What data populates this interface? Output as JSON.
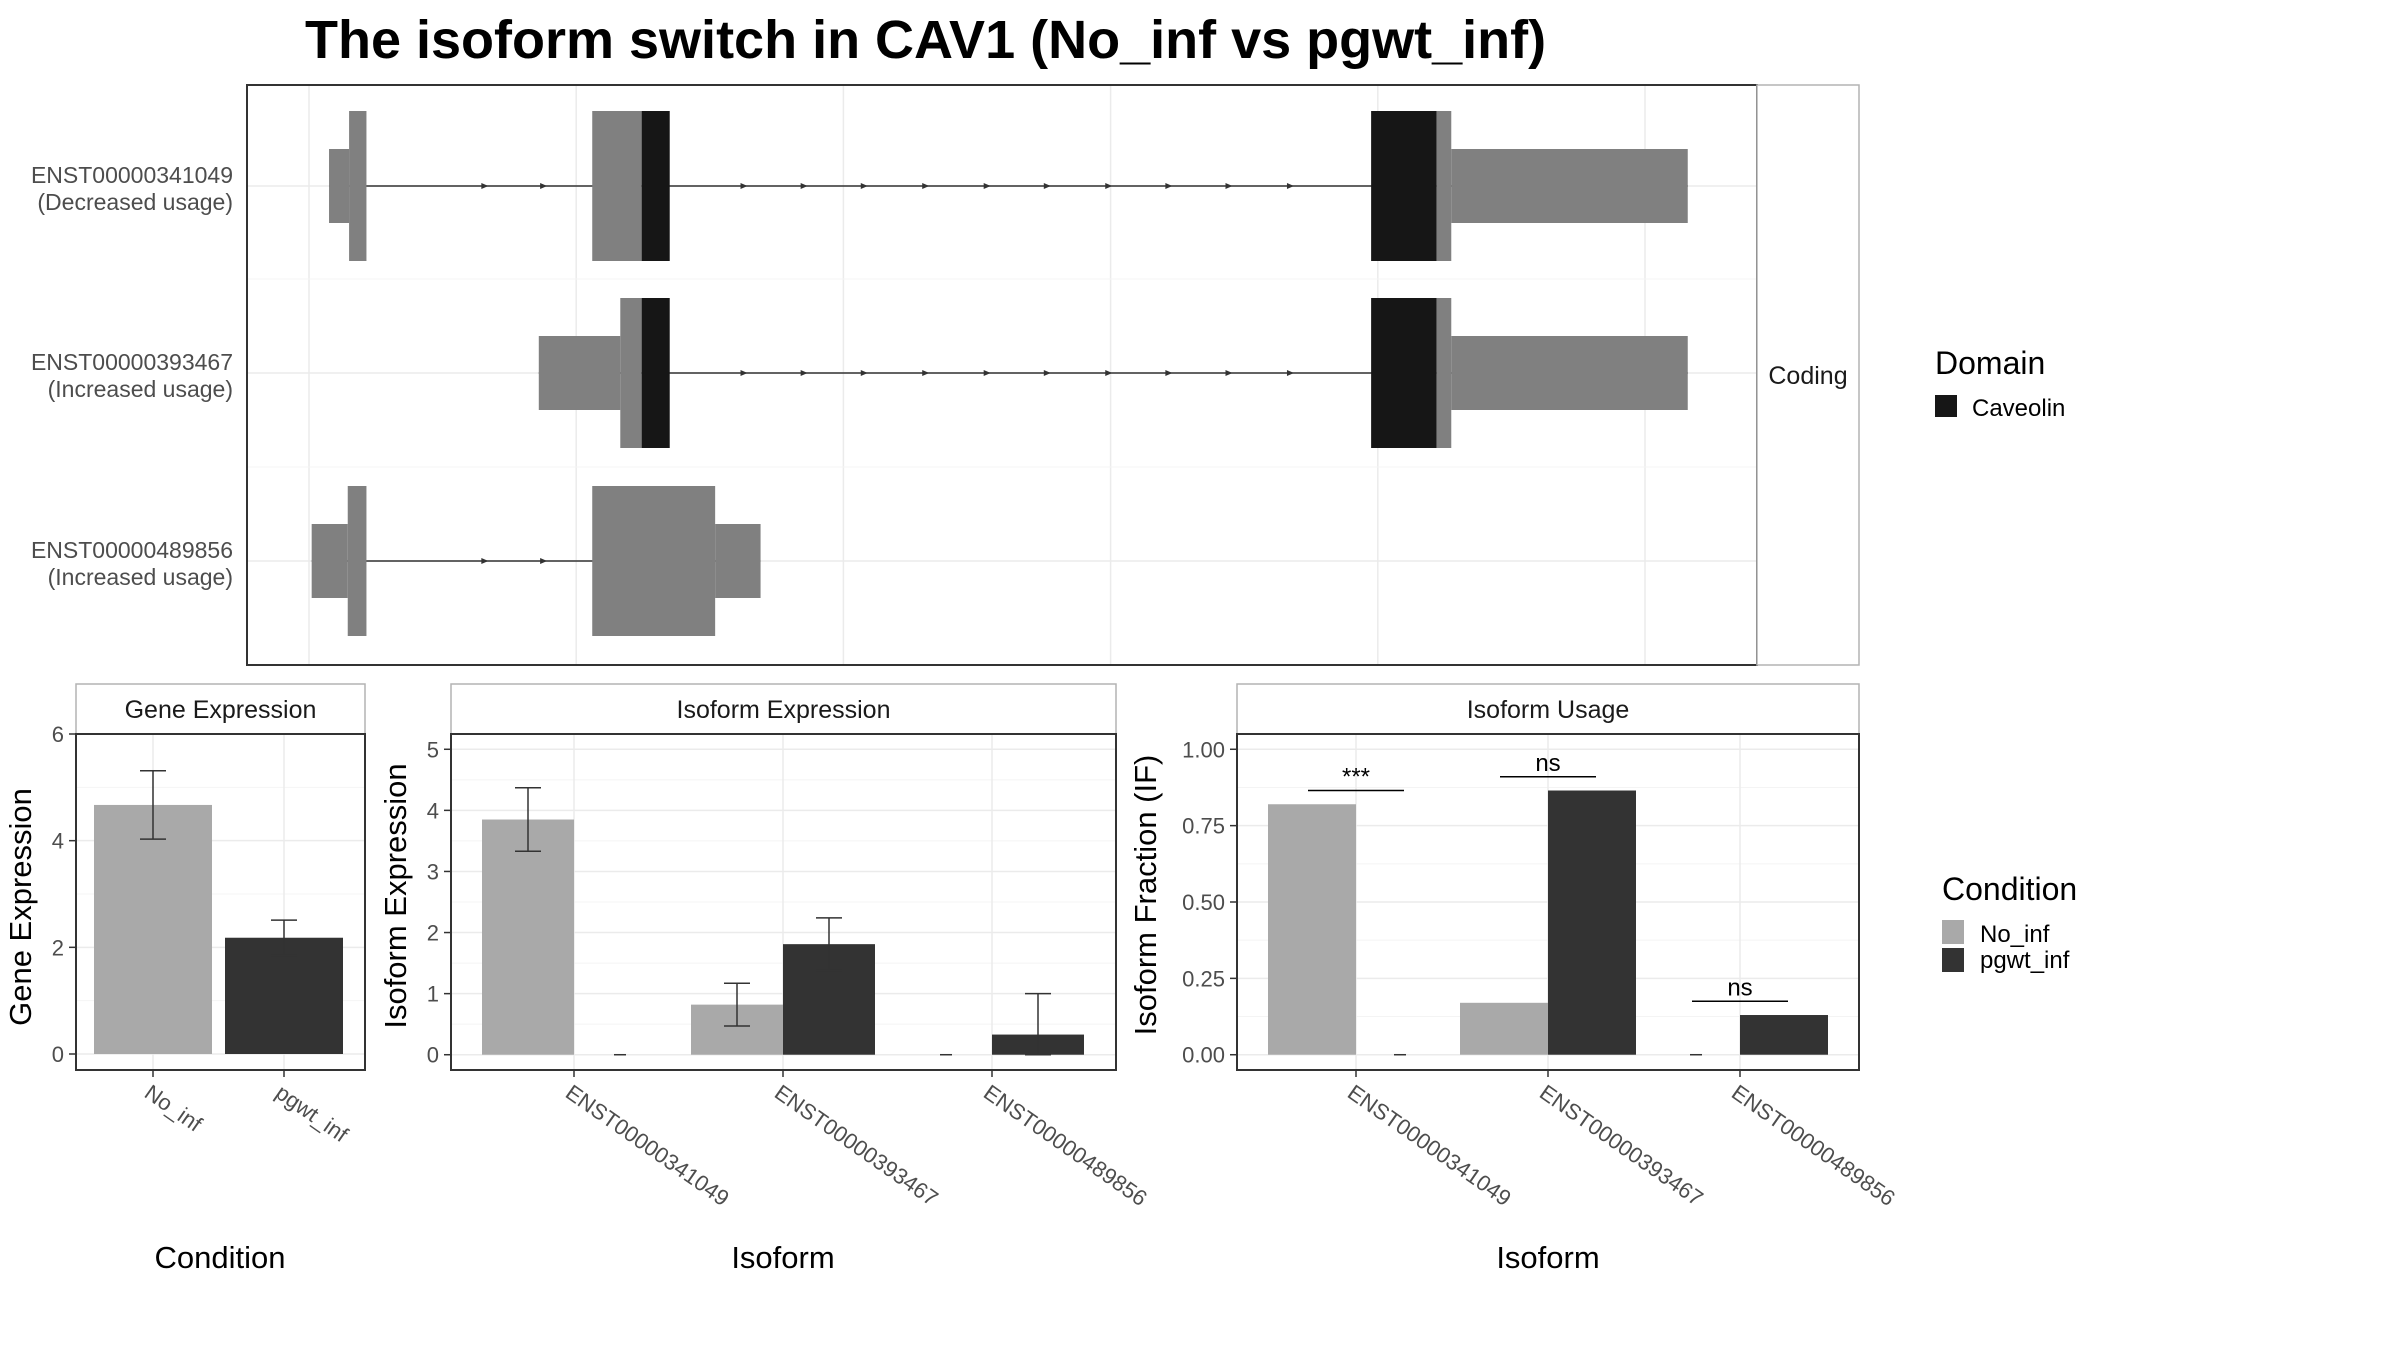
{
  "title": "The isoform switch in CAV1 (No_inf vs pgwt_inf)",
  "colors": {
    "exon": "#808080",
    "domain_caveolin": "#161616",
    "no_inf": "#a9a9a9",
    "pgwt_inf": "#333333",
    "grid": "#ebebeb",
    "strip_fill": "#ffffff",
    "intron": "#333333"
  },
  "chart_data": [
    {
      "type": "transcript",
      "facet_label": "Coding",
      "x_range": [
        0,
        100
      ],
      "transcripts": [
        {
          "id": "ENST00000341049",
          "usage": "(Decreased usage)",
          "exons": [
            {
              "start": 1.5,
              "end": 3.0,
              "kind": "utr"
            },
            {
              "start": 3.0,
              "end": 4.3,
              "kind": "cds"
            },
            {
              "start": 21.2,
              "end": 24.9,
              "kind": "cds"
            },
            {
              "start": 24.9,
              "end": 27.0,
              "kind": "cds",
              "domain": "Caveolin"
            },
            {
              "start": 79.5,
              "end": 84.4,
              "kind": "cds",
              "domain": "Caveolin"
            },
            {
              "start": 84.4,
              "end": 85.5,
              "kind": "cds"
            },
            {
              "start": 85.5,
              "end": 103.2,
              "kind": "utr"
            }
          ],
          "arrows": [
            13.2,
            17.6,
            32.6,
            37.1,
            41.6,
            46.2,
            50.8,
            55.3,
            59.9,
            64.4,
            68.9,
            73.5
          ]
        },
        {
          "id": "ENST00000393467",
          "usage": "(Increased usage)",
          "exons": [
            {
              "start": 17.2,
              "end": 23.3,
              "kind": "utr"
            },
            {
              "start": 23.3,
              "end": 24.9,
              "kind": "cds"
            },
            {
              "start": 24.9,
              "end": 27.0,
              "kind": "cds",
              "domain": "Caveolin"
            },
            {
              "start": 79.5,
              "end": 84.4,
              "kind": "cds",
              "domain": "Caveolin"
            },
            {
              "start": 84.4,
              "end": 85.5,
              "kind": "cds"
            },
            {
              "start": 85.5,
              "end": 103.2,
              "kind": "utr"
            }
          ],
          "arrows": [
            32.6,
            37.1,
            41.6,
            46.2,
            50.8,
            55.3,
            59.9,
            64.4,
            68.9,
            73.5
          ]
        },
        {
          "id": "ENST00000489856",
          "usage": "(Increased usage)",
          "exons": [
            {
              "start": 0.2,
              "end": 2.9,
              "kind": "utr"
            },
            {
              "start": 2.9,
              "end": 4.3,
              "kind": "cds"
            },
            {
              "start": 21.2,
              "end": 30.4,
              "kind": "cds"
            },
            {
              "start": 30.4,
              "end": 33.8,
              "kind": "utr"
            }
          ],
          "arrows": [
            13.2,
            17.6
          ]
        }
      ],
      "legend": {
        "title": "Domain",
        "items": [
          {
            "name": "Caveolin"
          }
        ]
      }
    },
    {
      "type": "bar",
      "facet_label": "Gene Expression",
      "xlabel": "Condition",
      "ylabel": "Gene Expression",
      "categories": [
        "No_inf",
        "pgwt_inf"
      ],
      "values": [
        4.67,
        2.18
      ],
      "error": [
        [
          4.03,
          5.31
        ],
        [
          1.85,
          2.51
        ]
      ],
      "ylim": [
        -0.3,
        6.0
      ],
      "yticks": [
        0,
        2,
        4,
        6
      ],
      "grid": true
    },
    {
      "type": "bar",
      "facet_label": "Isoform Expression",
      "xlabel": "Isoform",
      "ylabel": "Isoform Expression",
      "categories": [
        "ENST00000341049",
        "ENST00000393467",
        "ENST00000489856"
      ],
      "series": [
        {
          "name": "No_inf",
          "values": [
            3.85,
            0.82,
            0.0
          ],
          "error": [
            [
              3.33,
              4.37
            ],
            [
              0.47,
              1.17
            ],
            [
              0.0,
              0.0
            ]
          ]
        },
        {
          "name": "pgwt_inf",
          "values": [
            0.0,
            1.81,
            0.33
          ],
          "error": [
            [
              0.0,
              0.0
            ],
            [
              1.38,
              2.24
            ],
            [
              0.0,
              1.0
            ]
          ]
        }
      ],
      "ylim": [
        -0.25,
        5.25
      ],
      "yticks": [
        0,
        1,
        2,
        3,
        4,
        5
      ],
      "grid": true
    },
    {
      "type": "bar",
      "facet_label": "Isoform Usage",
      "xlabel": "Isoform",
      "ylabel": "Isoform Fraction (IF)",
      "categories": [
        "ENST00000341049",
        "ENST00000393467",
        "ENST00000489856"
      ],
      "series": [
        {
          "name": "No_inf",
          "values": [
            0.82,
            0.17,
            0.0
          ]
        },
        {
          "name": "pgwt_inf",
          "values": [
            0.0,
            0.865,
            0.13
          ]
        }
      ],
      "significance": [
        {
          "label": "***",
          "value": 0.865
        },
        {
          "label": "ns",
          "value": 0.91
        },
        {
          "label": "ns",
          "value": 0.175
        }
      ],
      "ylim": [
        -0.05,
        1.05
      ],
      "yticks": [
        0.0,
        0.25,
        0.5,
        0.75,
        1.0
      ],
      "ytick_labels": [
        "0.00",
        "0.25",
        "0.50",
        "0.75",
        "1.00"
      ],
      "grid": true,
      "legend": {
        "title": "Condition",
        "items": [
          {
            "name": "No_inf"
          },
          {
            "name": "pgwt_inf"
          }
        ]
      }
    }
  ]
}
